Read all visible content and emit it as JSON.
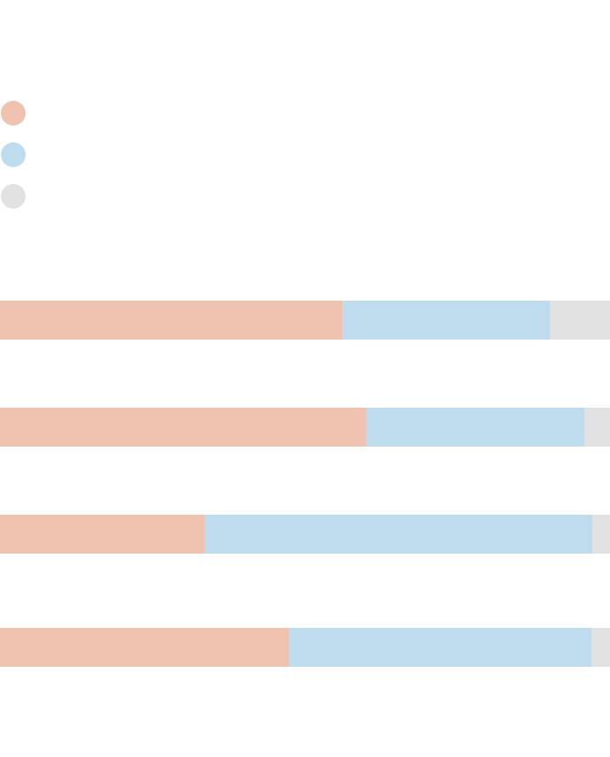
{
  "colors": {
    "series_1": "#f0c2b0",
    "series_2": "#bedcee",
    "series_3": "#e2e2e2",
    "background": "#ffffff"
  },
  "chart_data": {
    "type": "bar",
    "orientation": "horizontal",
    "stacked": true,
    "normalized": true,
    "title": "",
    "xlabel": "",
    "ylabel": "",
    "xlim": [
      0,
      100
    ],
    "grid": false,
    "legend_position": "top-left",
    "categories": [
      "",
      "",
      "",
      ""
    ],
    "series": [
      {
        "color": "#f0c2b0",
        "values": [
          56.2,
          60.1,
          33.6,
          47.4
        ]
      },
      {
        "color": "#bedcee",
        "values": [
          34.0,
          35.7,
          63.5,
          49.6
        ]
      },
      {
        "color": "#e2e2e2",
        "values": [
          9.8,
          4.2,
          2.9,
          3.0
        ]
      }
    ]
  }
}
